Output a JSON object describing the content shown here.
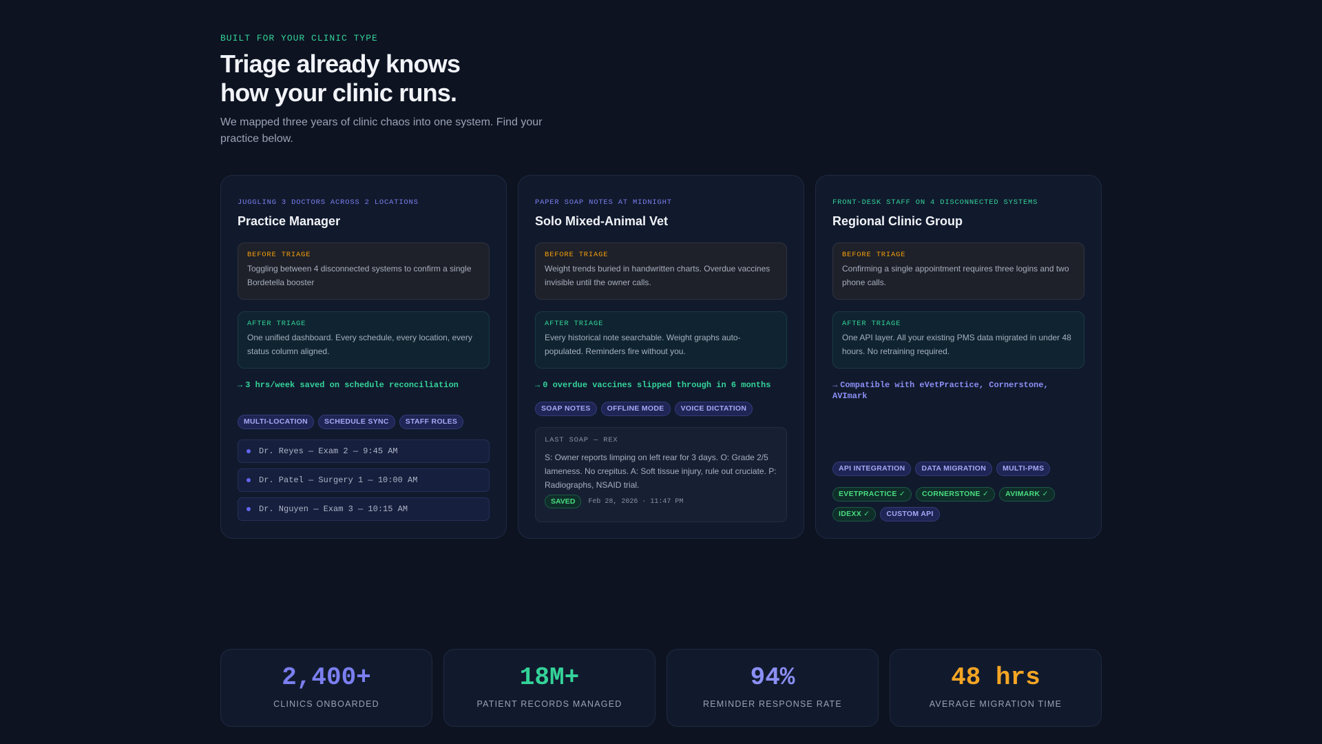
{
  "hero": {
    "eyebrow": "BUILT FOR YOUR CLINIC TYPE",
    "headline_line1": "Triage already knows",
    "headline_line2": "how your clinic runs.",
    "subtitle": "We mapped three years of clinic chaos into one system. Find your practice below."
  },
  "cards": [
    {
      "eyebrow": "JUGGLING 3 DOCTORS ACROSS 2 LOCATIONS",
      "title": "Practice Manager",
      "before_label": "BEFORE TRIAGE",
      "before_text": "Toggling between 4 disconnected systems to confirm a single Bordetella booster",
      "after_label": "AFTER TRIAGE",
      "after_text": "One unified dashboard. Every schedule, every location, every status column aligned.",
      "result": "3 hrs/week saved on schedule reconciliation",
      "tags": [
        "MULTI-LOCATION",
        "SCHEDULE SYNC",
        "STAFF ROLES"
      ],
      "schedule": [
        "Dr. Reyes — Exam 2 — 9:45 AM",
        "Dr. Patel — Surgery 1 — 10:00 AM",
        "Dr. Nguyen — Exam 3 — 10:15 AM"
      ]
    },
    {
      "eyebrow": "PAPER SOAP NOTES AT MIDNIGHT",
      "title": "Solo Mixed-Animal Vet",
      "before_label": "BEFORE TRIAGE",
      "before_text": "Weight trends buried in handwritten charts. Overdue vaccines invisible until the owner calls.",
      "after_label": "AFTER TRIAGE",
      "after_text": "Every historical note searchable. Weight graphs auto-populated. Reminders fire without you.",
      "result": "0 overdue vaccines slipped through in 6 months",
      "tags": [
        "SOAP NOTES",
        "OFFLINE MODE",
        "VOICE DICTATION"
      ],
      "soap": {
        "label": "LAST SOAP — REX",
        "text": "S: Owner reports limping on left rear for 3 days. O: Grade 2/5 lameness. No crepitus. A: Soft tissue injury, rule out cruciate. P: Radiographs, NSAID trial.",
        "status": "SAVED",
        "timestamp": "Feb 28, 2026 · 11:47 PM"
      }
    },
    {
      "eyebrow": "FRONT-DESK STAFF ON 4 DISCONNECTED SYSTEMS",
      "title": "Regional Clinic Group",
      "before_label": "BEFORE TRIAGE",
      "before_text": "Confirming a single appointment requires three logins and two phone calls.",
      "after_label": "AFTER TRIAGE",
      "after_text": "One API layer. All your existing PMS data migrated in under 48 hours. No retraining required.",
      "result": "Compatible with eVetPractice, Cornerstone, AVImark",
      "tags": [
        "API INTEGRATION",
        "DATA MIGRATION",
        "MULTI-PMS"
      ],
      "integrations": [
        "EVETPRACTICE ✓",
        "CORNERSTONE ✓",
        "AVIMARK ✓",
        "IDEXX ✓",
        "CUSTOM API"
      ]
    }
  ],
  "result_arrow": "→",
  "stats": [
    {
      "value": "2,400+",
      "label": "CLINICS ONBOARDED",
      "color": "#7b7ff0"
    },
    {
      "value": "18M+",
      "label": "PATIENT RECORDS MANAGED",
      "color": "#34d399"
    },
    {
      "value": "94%",
      "label": "REMINDER RESPONSE RATE",
      "color": "#8b8ff5"
    },
    {
      "value": "48 hrs",
      "label": "AVERAGE MIGRATION TIME",
      "color": "#f5a524"
    }
  ]
}
